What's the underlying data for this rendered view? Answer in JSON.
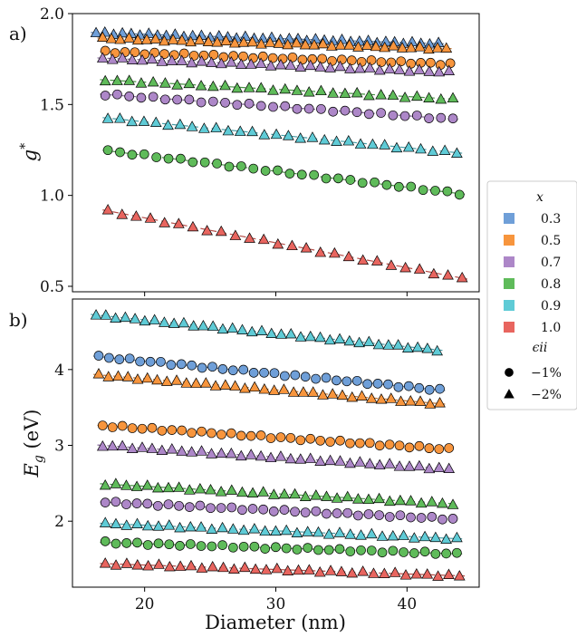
{
  "chart_data": [
    {
      "type": "scatter",
      "panel_label": "a)",
      "xlabel": "",
      "ylabel": "g*",
      "xlim": [
        14.5,
        45.5
      ],
      "ylim": [
        0.47,
        2.0
      ],
      "yticks": [
        {
          "value": 0.5,
          "label": "0.5"
        },
        {
          "value": 1.0,
          "label": "1.0"
        },
        {
          "value": 1.5,
          "label": "1.5"
        },
        {
          "value": 2.0,
          "label": "2.0"
        }
      ],
      "xticks": [
        {
          "value": 20,
          "label": ""
        },
        {
          "value": 30,
          "label": ""
        },
        {
          "value": 40,
          "label": ""
        }
      ],
      "series": [
        {
          "x_comp": "0.3",
          "strain": "-2%",
          "marker": "triangle",
          "color": "#6f9fd8",
          "x_start": 16.3,
          "x_end": 42.4,
          "n": 40,
          "y_start": 1.895,
          "y_end": 1.835
        },
        {
          "x_comp": "0.5",
          "strain": "-2%",
          "marker": "triangle",
          "color": "#f7953d",
          "x_start": 16.8,
          "x_end": 43.0,
          "n": 40,
          "y_start": 1.865,
          "y_end": 1.808
        },
        {
          "x_comp": "0.5",
          "strain": "-1%",
          "marker": "circle",
          "color": "#f7953d",
          "x_start": 17.0,
          "x_end": 43.3,
          "n": 36,
          "y_start": 1.79,
          "y_end": 1.722
        },
        {
          "x_comp": "0.7",
          "strain": "-2%",
          "marker": "triangle",
          "color": "#ad87c8",
          "x_start": 16.8,
          "x_end": 43.2,
          "n": 36,
          "y_start": 1.755,
          "y_end": 1.68
        },
        {
          "x_comp": "0.8",
          "strain": "-2%",
          "marker": "triangle",
          "color": "#5fbb5a",
          "x_start": 17.0,
          "x_end": 43.5,
          "n": 30,
          "y_start": 1.635,
          "y_end": 1.53
        },
        {
          "x_comp": "0.7",
          "strain": "-1%",
          "marker": "circle",
          "color": "#ad87c8",
          "x_start": 17.0,
          "x_end": 43.5,
          "n": 30,
          "y_start": 1.555,
          "y_end": 1.42
        },
        {
          "x_comp": "0.9",
          "strain": "-2%",
          "marker": "triangle",
          "color": "#5fcbd6",
          "x_start": 17.2,
          "x_end": 43.8,
          "n": 30,
          "y_start": 1.425,
          "y_end": 1.235
        },
        {
          "x_comp": "0.8",
          "strain": "-1%",
          "marker": "circle",
          "color": "#5fbb5a",
          "x_start": 17.2,
          "x_end": 44.0,
          "n": 30,
          "y_start": 1.245,
          "y_end": 1.01
        },
        {
          "x_comp": "1.0",
          "strain": "-2%",
          "marker": "triangle",
          "color": "#e8655f",
          "x_start": 17.2,
          "x_end": 44.2,
          "n": 26,
          "y_start": 0.915,
          "y_end": 0.545
        }
      ]
    },
    {
      "type": "scatter",
      "panel_label": "b)",
      "xlabel": "Diameter (nm)",
      "ylabel_main": "E",
      "ylabel_sub": "g",
      "ylabel_unit": " (eV)",
      "xlim": [
        14.5,
        45.5
      ],
      "ylim": [
        1.13,
        4.93
      ],
      "yticks": [
        {
          "value": 2,
          "label": "2"
        },
        {
          "value": 3,
          "label": "3"
        },
        {
          "value": 4,
          "label": "4"
        }
      ],
      "xticks": [
        {
          "value": 20,
          "label": "20"
        },
        {
          "value": 30,
          "label": "30"
        },
        {
          "value": 40,
          "label": "40"
        }
      ],
      "series": [
        {
          "x_comp": "0.9",
          "strain": "-2%",
          "marker": "triangle",
          "color": "#5fcbd6",
          "x_start": 16.3,
          "x_end": 42.3,
          "n": 36,
          "y_start": 4.72,
          "y_end": 4.26
        },
        {
          "x_comp": "0.3",
          "strain": "-1%",
          "marker": "circle",
          "color": "#6f9fd8",
          "x_start": 16.5,
          "x_end": 42.5,
          "n": 34,
          "y_start": 4.17,
          "y_end": 3.73
        },
        {
          "x_comp": "0.5",
          "strain": "-2%",
          "marker": "triangle",
          "color": "#f7953d",
          "x_start": 16.5,
          "x_end": 42.5,
          "n": 36,
          "y_start": 3.93,
          "y_end": 3.55
        },
        {
          "x_comp": "0.5",
          "strain": "-1%",
          "marker": "circle",
          "color": "#f7953d",
          "x_start": 16.8,
          "x_end": 43.2,
          "n": 36,
          "y_start": 3.26,
          "y_end": 2.95
        },
        {
          "x_comp": "0.7",
          "strain": "-2%",
          "marker": "triangle",
          "color": "#ad87c8",
          "x_start": 16.8,
          "x_end": 43.2,
          "n": 36,
          "y_start": 3.0,
          "y_end": 2.69
        },
        {
          "x_comp": "0.8",
          "strain": "-2%",
          "marker": "triangle",
          "color": "#5fbb5a",
          "x_start": 17.0,
          "x_end": 43.5,
          "n": 34,
          "y_start": 2.49,
          "y_end": 2.23
        },
        {
          "x_comp": "0.7",
          "strain": "-1%",
          "marker": "circle",
          "color": "#ad87c8",
          "x_start": 17.0,
          "x_end": 43.5,
          "n": 34,
          "y_start": 2.25,
          "y_end": 2.03
        },
        {
          "x_comp": "0.9",
          "strain": "-2%",
          "marker": "triangle",
          "color": "#5fcbd6",
          "x_start": 17.0,
          "x_end": 43.8,
          "n": 34,
          "y_start": 1.97,
          "y_end": 1.77
        },
        {
          "x_comp": "0.8",
          "strain": "-1%",
          "marker": "circle",
          "color": "#5fbb5a",
          "x_start": 17.0,
          "x_end": 43.8,
          "n": 34,
          "y_start": 1.72,
          "y_end": 1.57
        },
        {
          "x_comp": "1.0",
          "strain": "-2%",
          "marker": "triangle",
          "color": "#e8655f",
          "x_start": 17.0,
          "x_end": 44.0,
          "n": 34,
          "y_start": 1.44,
          "y_end": 1.28
        }
      ]
    }
  ],
  "legend": {
    "title_x": "x",
    "items": [
      {
        "label": "0.3",
        "color": "#6f9fd8"
      },
      {
        "label": "0.5",
        "color": "#f7953d"
      },
      {
        "label": "0.7",
        "color": "#ad87c8"
      },
      {
        "label": "0.8",
        "color": "#5fbb5a"
      },
      {
        "label": "0.9",
        "color": "#5fcbd6"
      },
      {
        "label": "1.0",
        "color": "#e8655f"
      }
    ],
    "title_strain": "ϵii",
    "markers": [
      {
        "label": "−1%",
        "marker": "circle"
      },
      {
        "label": "−2%",
        "marker": "triangle"
      }
    ]
  }
}
